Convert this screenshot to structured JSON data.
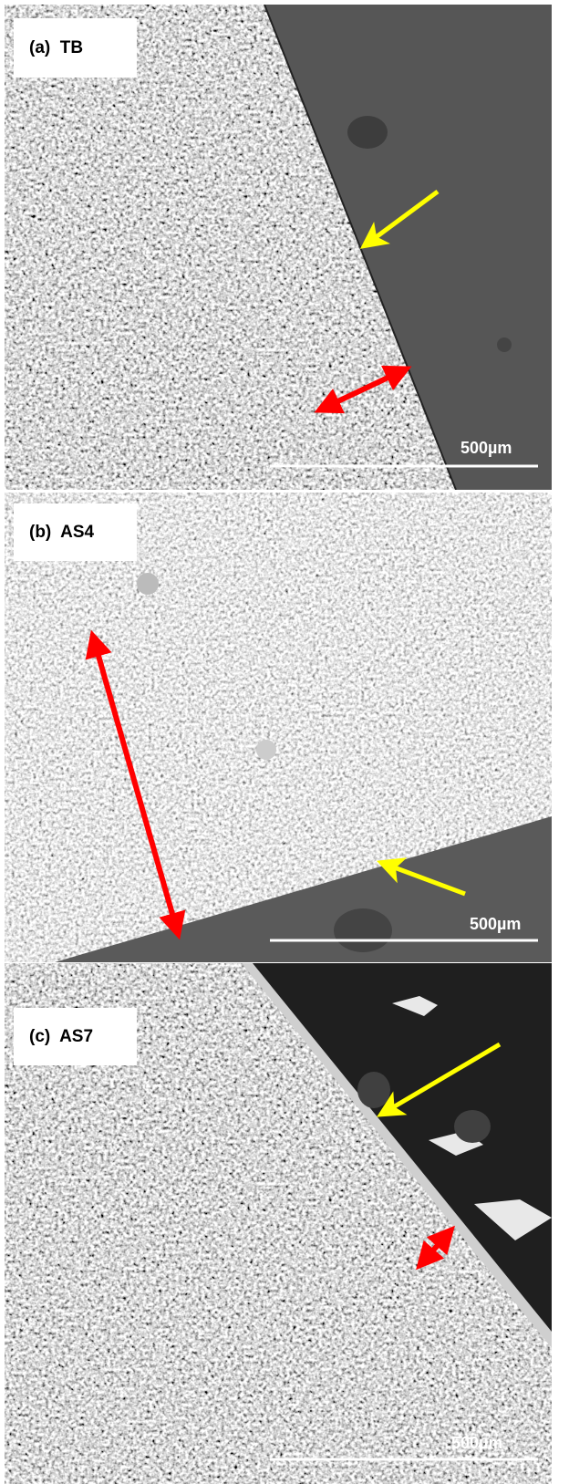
{
  "panels": [
    {
      "label": "(a)  TB",
      "scale_bar": "500µm"
    },
    {
      "label": "(b)  AS4",
      "scale_bar": "500µm"
    },
    {
      "label": "(c)  AS7",
      "scale_bar": "500µm"
    }
  ]
}
